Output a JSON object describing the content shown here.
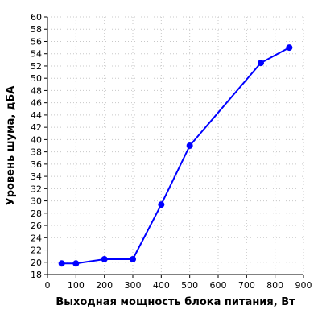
{
  "chart_data": {
    "type": "line",
    "title": "",
    "xlabel": "Выходная мощность блока питания, Вт",
    "ylabel": "Уровень шума, дБА",
    "xlim": [
      0,
      900
    ],
    "ylim": [
      18,
      60
    ],
    "x_ticks": [
      0,
      100,
      200,
      300,
      400,
      500,
      600,
      700,
      800,
      900
    ],
    "y_ticks": [
      18,
      20,
      22,
      24,
      26,
      28,
      30,
      32,
      34,
      36,
      38,
      40,
      42,
      44,
      46,
      48,
      50,
      52,
      54,
      56,
      58,
      60
    ],
    "grid": true,
    "legend": "none",
    "series": [
      {
        "color": "#0000ff",
        "x": [
          50,
          100,
          200,
          300,
          400,
          500,
          750,
          850
        ],
        "y": [
          19.8,
          19.8,
          20.5,
          20.5,
          29.4,
          39.0,
          52.5,
          55.0
        ]
      }
    ]
  }
}
